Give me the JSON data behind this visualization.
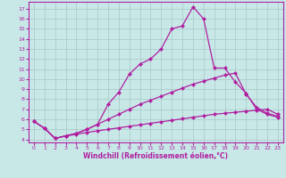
{
  "background_color": "#c8e8e8",
  "grid_color": "#a8c8c8",
  "line_color": "#b020a0",
  "xlabel": "Windchill (Refroidissement éolien,°C)",
  "yticks": [
    4,
    5,
    6,
    7,
    8,
    9,
    10,
    11,
    12,
    13,
    14,
    15,
    16,
    17
  ],
  "xticks": [
    0,
    1,
    2,
    3,
    4,
    5,
    6,
    7,
    8,
    9,
    10,
    11,
    12,
    13,
    14,
    15,
    16,
    17,
    18,
    19,
    20,
    21,
    22,
    23
  ],
  "xlim": [
    -0.5,
    23.5
  ],
  "ylim": [
    3.7,
    17.7
  ],
  "curve1_x": [
    0,
    1,
    2,
    3,
    4,
    5,
    6,
    7,
    8,
    9,
    10,
    11,
    12,
    13,
    14,
    15,
    16,
    17,
    18,
    19,
    20,
    21,
    22,
    23
  ],
  "curve1_y": [
    5.8,
    5.1,
    4.1,
    4.35,
    4.5,
    4.7,
    4.85,
    5.0,
    5.15,
    5.3,
    5.45,
    5.6,
    5.75,
    5.9,
    6.05,
    6.2,
    6.35,
    6.5,
    6.6,
    6.7,
    6.8,
    6.9,
    7.0,
    6.5
  ],
  "curve2_x": [
    0,
    1,
    2,
    3,
    4,
    5,
    6,
    7,
    8,
    9,
    10,
    11,
    12,
    13,
    14,
    15,
    16,
    17,
    18,
    19,
    20,
    21,
    22,
    23
  ],
  "curve2_y": [
    5.8,
    5.1,
    4.1,
    4.35,
    4.6,
    5.0,
    5.5,
    6.0,
    6.5,
    7.0,
    7.5,
    7.9,
    8.3,
    8.7,
    9.1,
    9.5,
    9.8,
    10.1,
    10.4,
    10.6,
    8.5,
    7.2,
    6.6,
    6.3
  ],
  "curve3_x": [
    0,
    1,
    2,
    3,
    4,
    5,
    6,
    7,
    8,
    9,
    10,
    11,
    12,
    13,
    14,
    15,
    16,
    17,
    18,
    19,
    20,
    21,
    22,
    23
  ],
  "curve3_y": [
    5.8,
    5.1,
    4.1,
    4.35,
    4.6,
    5.0,
    5.5,
    7.5,
    8.7,
    10.5,
    11.5,
    12.0,
    13.0,
    15.0,
    15.3,
    17.2,
    16.0,
    11.1,
    11.1,
    9.7,
    8.6,
    7.0,
    6.5,
    6.2
  ]
}
